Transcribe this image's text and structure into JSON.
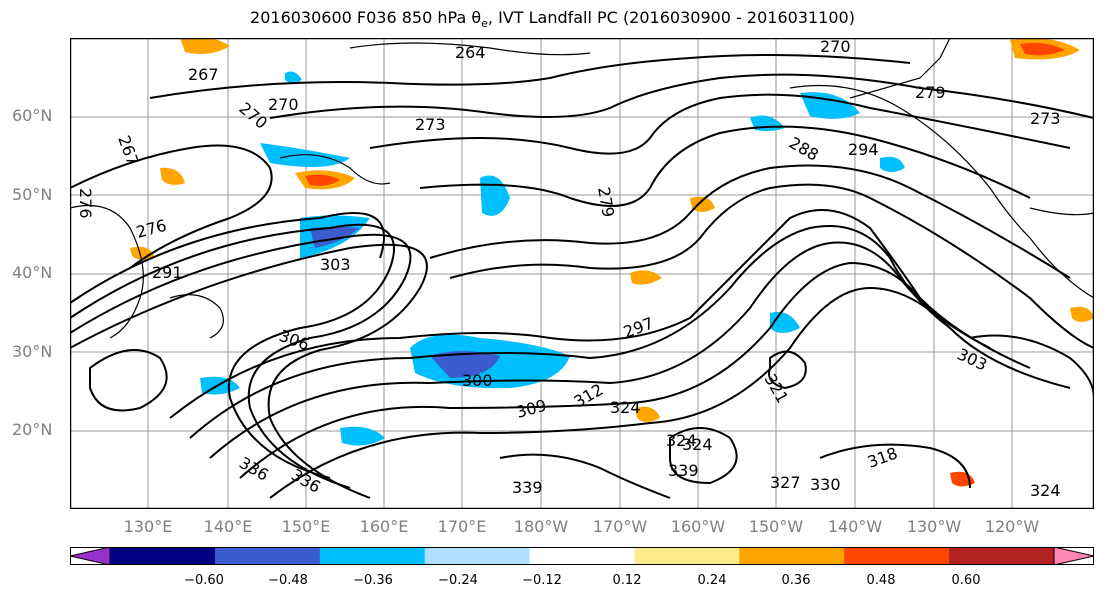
{
  "title": "2016030600 F036 850 hPa θe, IVT Landfall PC (2016030900 - 2016031100)",
  "map": {
    "lat_labels": [
      "60°N",
      "50°N",
      "40°N",
      "30°N",
      "20°N"
    ],
    "lon_labels": [
      "130°E",
      "140°E",
      "150°E",
      "160°E",
      "170°E",
      "180°W",
      "170°W",
      "160°W",
      "150°W",
      "140°W",
      "130°W",
      "120°W"
    ],
    "contour_labels": [
      "264",
      "267",
      "267",
      "270",
      "270",
      "270",
      "273",
      "273",
      "276",
      "276",
      "279",
      "279",
      "288",
      "291",
      "294",
      "297",
      "300",
      "303",
      "303",
      "306",
      "309",
      "312",
      "324",
      "324",
      "327",
      "330",
      "336",
      "336",
      "339",
      "339",
      "318",
      "321",
      "324",
      "324"
    ]
  },
  "colorbar": {
    "colors": [
      "#9932cc",
      "#000080",
      "#3a5ccc",
      "#00bfff",
      "#b0e0ff",
      "#ffffff",
      "#ffeb8a",
      "#ffa500",
      "#ff4500",
      "#b22222",
      "#ff85b3"
    ],
    "ticks": [
      "−0.60",
      "−0.48",
      "−0.36",
      "−0.24",
      "−0.12",
      "0.12",
      "0.24",
      "0.36",
      "0.48",
      "0.60"
    ]
  }
}
